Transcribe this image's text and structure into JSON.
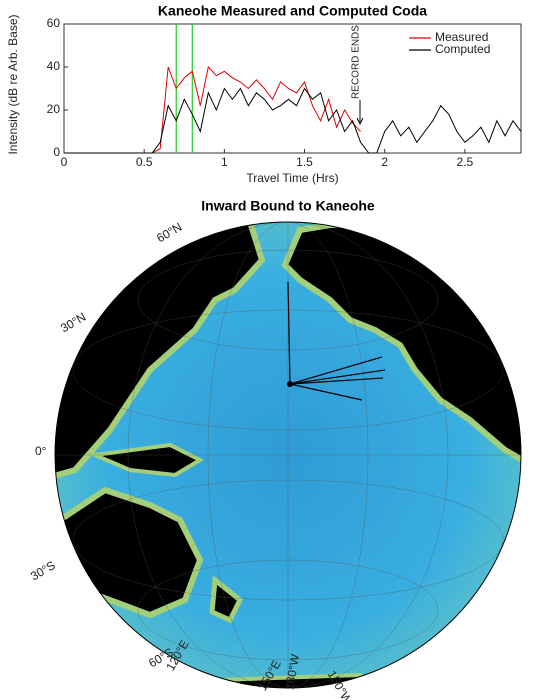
{
  "chart_data": [
    {
      "type": "line",
      "title": "Kaneohe Measured and Computed Coda",
      "x_label": "Travel Time (Hrs)",
      "y_label": "Intensity (dB re Arb. Base)",
      "x": [
        0,
        0.05,
        0.1,
        0.15,
        0.2,
        0.25,
        0.3,
        0.35,
        0.4,
        0.45,
        0.5,
        0.55,
        0.6,
        0.65,
        0.7,
        0.75,
        0.8,
        0.85,
        0.9,
        0.95,
        1.0,
        1.05,
        1.1,
        1.15,
        1.2,
        1.25,
        1.3,
        1.35,
        1.4,
        1.45,
        1.5,
        1.55,
        1.6,
        1.65,
        1.7,
        1.75,
        1.8,
        1.85,
        1.9,
        1.95,
        2.0,
        2.05,
        2.1,
        2.15,
        2.2,
        2.25,
        2.3,
        2.35,
        2.4,
        2.45,
        2.5,
        2.55,
        2.6,
        2.65,
        2.7,
        2.75,
        2.8,
        2.85
      ],
      "series": [
        {
          "name": "Measured",
          "color": "#e00000",
          "values": [
            0,
            0,
            0,
            0,
            0,
            0,
            0,
            0,
            0,
            0,
            0,
            0,
            2,
            40,
            30,
            35,
            38,
            22,
            40,
            36,
            38,
            35,
            33,
            30,
            34,
            30,
            25,
            33,
            30,
            28,
            33,
            22,
            15,
            25,
            12,
            20,
            14,
            10,
            null,
            null,
            null,
            null,
            null,
            null,
            null,
            null,
            null,
            null,
            null,
            null,
            null,
            null,
            null,
            null,
            null,
            null,
            null,
            null
          ]
        },
        {
          "name": "Computed",
          "color": "#000000",
          "values": [
            0,
            0,
            0,
            0,
            0,
            0,
            0,
            0,
            0,
            0,
            0,
            0,
            5,
            22,
            15,
            25,
            18,
            10,
            28,
            20,
            30,
            25,
            30,
            22,
            28,
            25,
            20,
            22,
            25,
            22,
            30,
            25,
            28,
            15,
            20,
            10,
            15,
            5,
            0,
            0,
            10,
            15,
            8,
            12,
            5,
            10,
            15,
            22,
            18,
            10,
            5,
            8,
            12,
            5,
            15,
            8,
            15,
            10
          ]
        }
      ],
      "markers": [
        0.7,
        0.8
      ],
      "marker_color": "#22cc22",
      "annotation": "RECORD ENDS",
      "xlim": [
        0,
        2.85
      ],
      "xticks": [
        0,
        0.5,
        1,
        1.5,
        2,
        2.5
      ],
      "ylim": [
        0,
        60
      ],
      "yticks": [
        0,
        20,
        40,
        60
      ],
      "legend": "upper right"
    },
    {
      "type": "map",
      "title": "Inward Bound to Kaneohe",
      "lat_labels": [
        "60°N",
        "30°N",
        "0°",
        "30°S",
        "60°S"
      ],
      "lon_labels": [
        "120°E",
        "150°E",
        "180°W",
        "150°W"
      ]
    }
  ]
}
